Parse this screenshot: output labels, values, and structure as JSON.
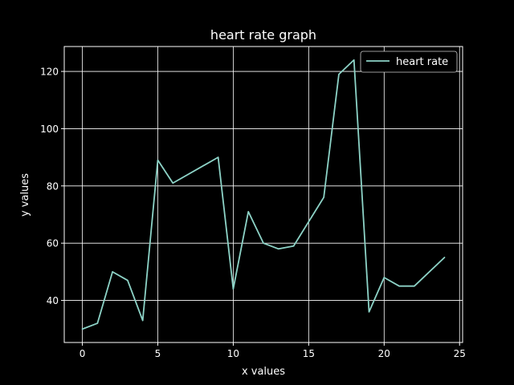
{
  "chart_data": {
    "type": "line",
    "title": "heart rate graph",
    "xlabel": "x values",
    "ylabel": "y values",
    "xlim": [
      -1.2,
      25.2
    ],
    "ylim": [
      25.3,
      128.7
    ],
    "xticks": [
      0,
      5,
      10,
      15,
      20,
      25
    ],
    "yticks": [
      40,
      60,
      80,
      100,
      120
    ],
    "grid": true,
    "legend_position": "top-right",
    "background_color": "#000000",
    "foreground_color": "#ffffff",
    "series": [
      {
        "name": "heart rate",
        "color": "#8dd3c7",
        "x": [
          0,
          1,
          2,
          3,
          4,
          5,
          6,
          9,
          10,
          11,
          12,
          13,
          14,
          16,
          17,
          18,
          19,
          20,
          21,
          22,
          24
        ],
        "y": [
          30,
          32,
          50,
          47,
          33,
          89,
          81,
          90,
          44,
          71,
          60,
          58,
          59,
          76,
          119,
          124,
          36,
          48,
          45,
          45,
          55
        ]
      }
    ]
  }
}
